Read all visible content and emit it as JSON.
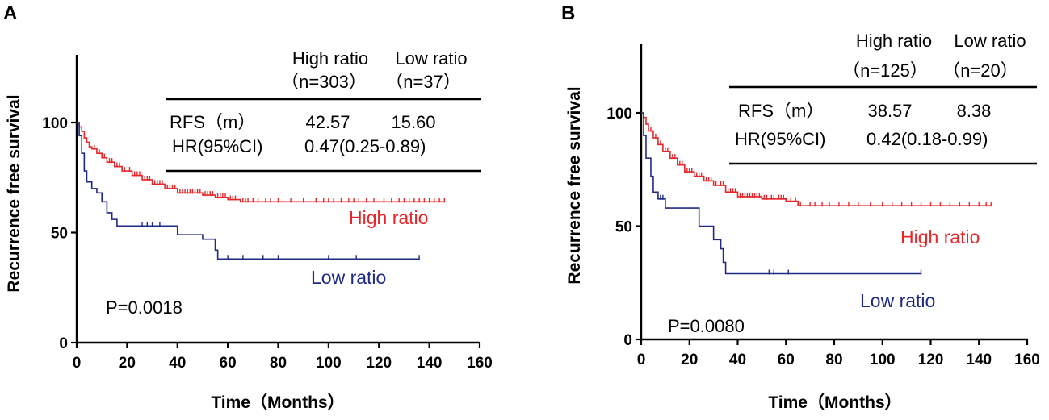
{
  "chart_data": [
    {
      "panel": "A",
      "type": "line",
      "subtype": "kaplan-meier",
      "xlabel": "Time（Months）",
      "ylabel": "Recurrence free survival",
      "xticks": [
        0,
        20,
        40,
        60,
        80,
        100,
        120,
        140,
        160
      ],
      "yticks": [
        0,
        50,
        100
      ],
      "xlim": [
        0,
        160
      ],
      "ylim": [
        0,
        130
      ],
      "p_value": "P=0.0018",
      "table": {
        "header": [
          "High ratio",
          "Low ratio"
        ],
        "subheader": [
          "（n=303）",
          "（n=37）"
        ],
        "rows": [
          {
            "label": "RFS（m）",
            "values": [
              "42.57",
              "15.60"
            ]
          },
          {
            "label": "HR(95%CI)",
            "values": [
              "0.47(0.25-0.89)"
            ]
          }
        ]
      },
      "series": [
        {
          "name": "High ratio",
          "color": "#e8262a",
          "label_text": "High ratio",
          "points": [
            [
              0,
              100
            ],
            [
              1,
              98
            ],
            [
              2,
              96
            ],
            [
              3,
              93
            ],
            [
              4,
              91
            ],
            [
              5,
              89
            ],
            [
              6,
              88
            ],
            [
              8,
              86
            ],
            [
              10,
              84
            ],
            [
              12,
              82
            ],
            [
              15,
              80
            ],
            [
              18,
              78
            ],
            [
              22,
              76
            ],
            [
              26,
              74
            ],
            [
              30,
              72
            ],
            [
              35,
              70
            ],
            [
              40,
              68
            ],
            [
              50,
              67
            ],
            [
              55,
              66
            ],
            [
              60,
              65
            ],
            [
              65,
              64
            ],
            [
              146,
              64
            ]
          ],
          "censored": [
            5,
            7,
            9,
            11,
            13,
            14,
            16,
            17,
            19,
            21,
            23,
            24,
            25,
            27,
            28,
            29,
            31,
            32,
            33,
            34,
            36,
            37,
            38,
            39,
            41,
            42,
            43,
            44,
            45,
            46,
            47,
            48,
            49,
            51,
            52,
            53,
            54,
            56,
            57,
            58,
            59,
            61,
            62,
            63,
            66,
            67,
            68,
            70,
            72,
            75,
            77,
            80,
            85,
            90,
            95,
            98,
            100,
            102,
            105,
            108,
            110,
            112,
            115,
            118,
            122,
            125,
            128,
            130,
            132,
            134,
            136,
            138,
            140,
            142,
            144,
            146
          ]
        },
        {
          "name": "Low ratio",
          "color": "#1f2a86",
          "label_text": "Low ratio",
          "points": [
            [
              0,
              100
            ],
            [
              1,
              94
            ],
            [
              2,
              86
            ],
            [
              3,
              78
            ],
            [
              4,
              73
            ],
            [
              6,
              70
            ],
            [
              8,
              68
            ],
            [
              10,
              64
            ],
            [
              12,
              59
            ],
            [
              14,
              56
            ],
            [
              16,
              53
            ],
            [
              32,
              53
            ],
            [
              40,
              49
            ],
            [
              48,
              49
            ],
            [
              50,
              47
            ],
            [
              53,
              47
            ],
            [
              55,
              42
            ],
            [
              56,
              38
            ],
            [
              136,
              38
            ]
          ],
          "censored": [
            26,
            28,
            30,
            33,
            60,
            66,
            74,
            80,
            100,
            111,
            136
          ]
        }
      ]
    },
    {
      "panel": "B",
      "type": "line",
      "subtype": "kaplan-meier",
      "xlabel": "Time（Months）",
      "ylabel": "Recurrence free survival",
      "xticks": [
        0,
        20,
        40,
        60,
        80,
        100,
        120,
        140,
        160
      ],
      "yticks": [
        0,
        50,
        100
      ],
      "xlim": [
        0,
        160
      ],
      "ylim": [
        0,
        130
      ],
      "p_value": "P=0.0080",
      "table": {
        "header": [
          "High ratio",
          "Low ratio"
        ],
        "subheader": [
          "（n=125）",
          "（n=20）"
        ],
        "rows": [
          {
            "label": "RFS（m）",
            "values": [
              "38.57",
              "8.38"
            ]
          },
          {
            "label": "HR(95%CI)",
            "values": [
              "0.42(0.18-0.99)"
            ]
          }
        ]
      },
      "series": [
        {
          "name": "High ratio",
          "color": "#e8262a",
          "label_text": "High ratio",
          "points": [
            [
              0,
              100
            ],
            [
              1,
              98
            ],
            [
              2,
              95
            ],
            [
              3,
              92
            ],
            [
              5,
              89
            ],
            [
              7,
              86
            ],
            [
              9,
              83
            ],
            [
              12,
              80
            ],
            [
              15,
              77
            ],
            [
              18,
              74
            ],
            [
              22,
              72
            ],
            [
              26,
              70
            ],
            [
              30,
              68
            ],
            [
              35,
              65
            ],
            [
              40,
              63
            ],
            [
              50,
              62
            ],
            [
              60,
              61
            ],
            [
              65,
              59
            ],
            [
              145,
              59
            ]
          ],
          "censored": [
            4,
            6,
            8,
            10,
            11,
            13,
            14,
            16,
            17,
            19,
            20,
            21,
            23,
            24,
            25,
            27,
            28,
            29,
            31,
            33,
            34,
            36,
            37,
            38,
            39,
            41,
            42,
            43,
            44,
            45,
            46,
            47,
            48,
            49,
            51,
            52,
            54,
            55,
            57,
            58,
            59,
            62,
            64,
            66,
            70,
            72,
            75,
            78,
            82,
            86,
            90,
            95,
            100,
            104,
            108,
            112,
            116,
            120,
            124,
            128,
            132,
            136,
            140,
            143,
            145
          ]
        },
        {
          "name": "Low ratio",
          "color": "#1f2a86",
          "label_text": "Low ratio",
          "points": [
            [
              0,
              100
            ],
            [
              1,
              90
            ],
            [
              2,
              80
            ],
            [
              4,
              72
            ],
            [
              5,
              65
            ],
            [
              7,
              62
            ],
            [
              10,
              58
            ],
            [
              20,
              58
            ],
            [
              24,
              50
            ],
            [
              30,
              44
            ],
            [
              33,
              40
            ],
            [
              34,
              34
            ],
            [
              35,
              29
            ],
            [
              116,
              29
            ]
          ],
          "censored": [
            8,
            9,
            53,
            55,
            61,
            116
          ]
        }
      ]
    }
  ]
}
